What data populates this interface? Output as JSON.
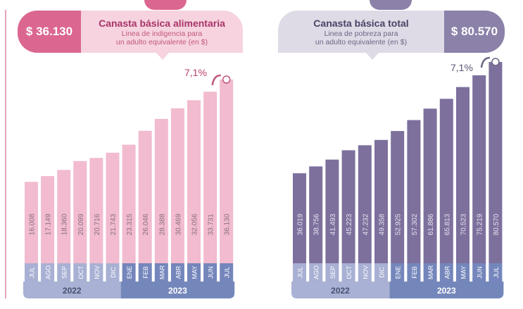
{
  "left_panel": {
    "price": "$ 36.130",
    "title": "Canasta básica alimentaria",
    "subtitle_1": "Linea de indigencia para",
    "subtitle_2": "un adulto equivalente (en $)",
    "change": "7,1%"
  },
  "right_panel": {
    "price": "$ 80.570",
    "title": "Canasta básica total",
    "subtitle_1": "Linea de pobreza para",
    "subtitle_2": "un adulto equivalente (en $)",
    "change": "7,1%"
  },
  "colors": {
    "alimentaria_bar": "#f2bbcf",
    "total_bar": "#7d709d",
    "month_2022": "#a8b0d3",
    "month_2023": "#7486bb",
    "year_2022": "#a9b1d4",
    "year_2023": "#7487bb"
  },
  "chart_data": [
    {
      "type": "bar",
      "title": "Canasta básica alimentaria",
      "categories": [
        "JUL",
        "AGO",
        "SEP",
        "OCT",
        "NOV",
        "DIC",
        "ENE",
        "FEB",
        "MAR",
        "ABR",
        "MAY",
        "JUN",
        "JUL"
      ],
      "values": [
        16008,
        17149,
        18360,
        20099,
        20716,
        21743,
        23315,
        26046,
        28388,
        30469,
        32056,
        33731,
        36130
      ],
      "value_labels": [
        "16.008",
        "17.149",
        "18.360",
        "20.099",
        "20.716",
        "21.743",
        "23.315",
        "26.046",
        "28.388",
        "30.469",
        "32.056",
        "33.731",
        "36.130"
      ],
      "year_groups": [
        {
          "label": "2022",
          "count": 6
        },
        {
          "label": "2023",
          "count": 7
        }
      ],
      "annotation": "7,1%"
    },
    {
      "type": "bar",
      "title": "Canasta básica total",
      "categories": [
        "JUL",
        "AGO",
        "SEP",
        "OCT",
        "NOV",
        "DIC",
        "ENE",
        "FEB",
        "MAR",
        "ABR",
        "MAY",
        "JUN",
        "JUL"
      ],
      "values": [
        36019,
        38756,
        41493,
        45223,
        47232,
        49358,
        52925,
        57302,
        61886,
        65813,
        70523,
        75219,
        80570
      ],
      "value_labels": [
        "36.019",
        "38.756",
        "41.493",
        "45.223",
        "47.232",
        "49.358",
        "52.925",
        "57.302",
        "61.886",
        "65.813",
        "70.523",
        "75.219",
        "80.570"
      ],
      "year_groups": [
        {
          "label": "2022",
          "count": 6
        },
        {
          "label": "2023",
          "count": 7
        }
      ],
      "annotation": "7,1%"
    }
  ]
}
